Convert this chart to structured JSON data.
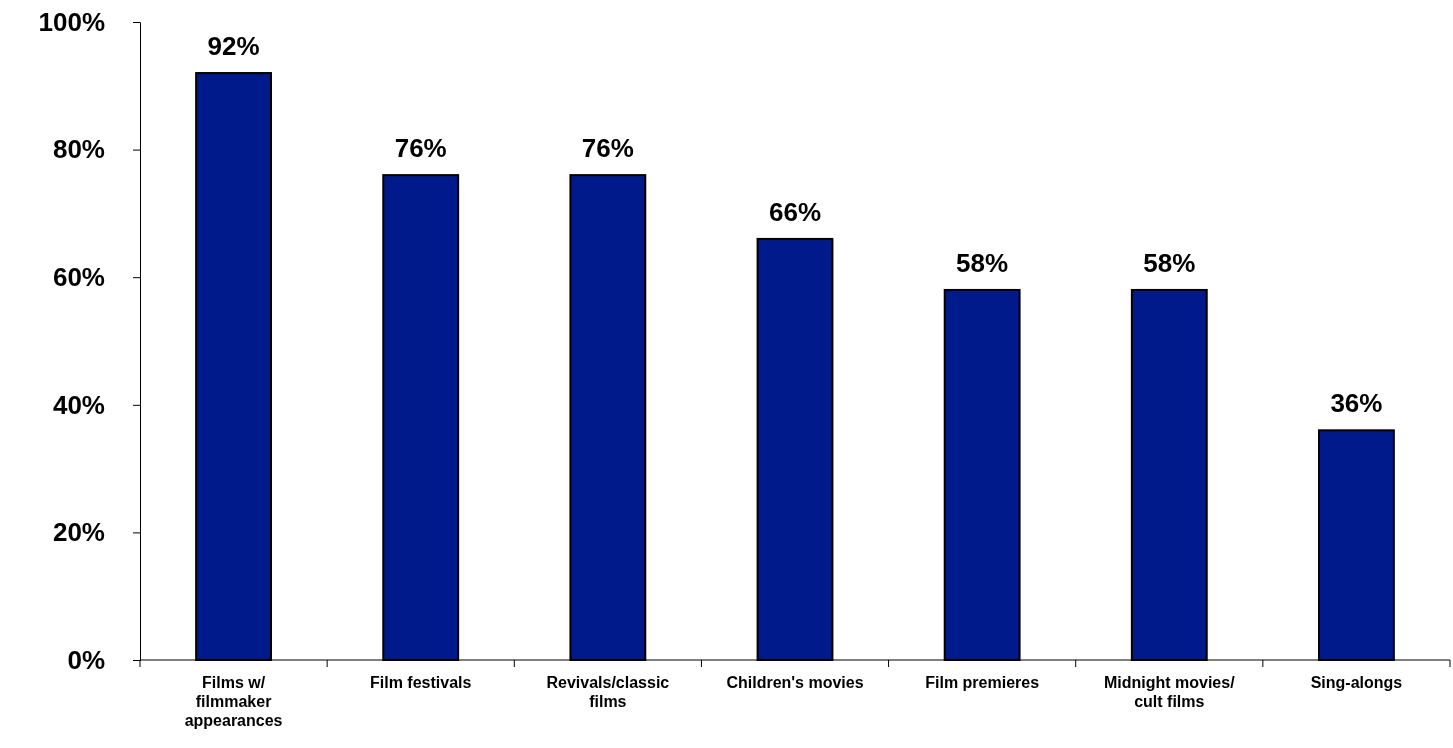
{
  "chart_data": {
    "type": "bar",
    "categories": [
      "Films w/\nfilmmaker\nappearances",
      "Film festivals",
      "Revivals/classic\nfilms",
      "Children's movies",
      "Film premieres",
      "Midnight movies/\ncult films",
      "Sing-alongs"
    ],
    "values": [
      92,
      76,
      76,
      66,
      58,
      58,
      36
    ],
    "value_labels": [
      "92%",
      "76%",
      "76%",
      "66%",
      "58%",
      "58%",
      "36%"
    ],
    "color": "#001a8c",
    "ylim": [
      0,
      100
    ],
    "yticks": [
      {
        "value": 0,
        "label": "0%"
      },
      {
        "value": 20,
        "label": "20%"
      },
      {
        "value": 40,
        "label": "40%"
      },
      {
        "value": 60,
        "label": "60%"
      },
      {
        "value": 80,
        "label": "80%"
      },
      {
        "value": 100,
        "label": "100%"
      }
    ],
    "grid": false
  }
}
